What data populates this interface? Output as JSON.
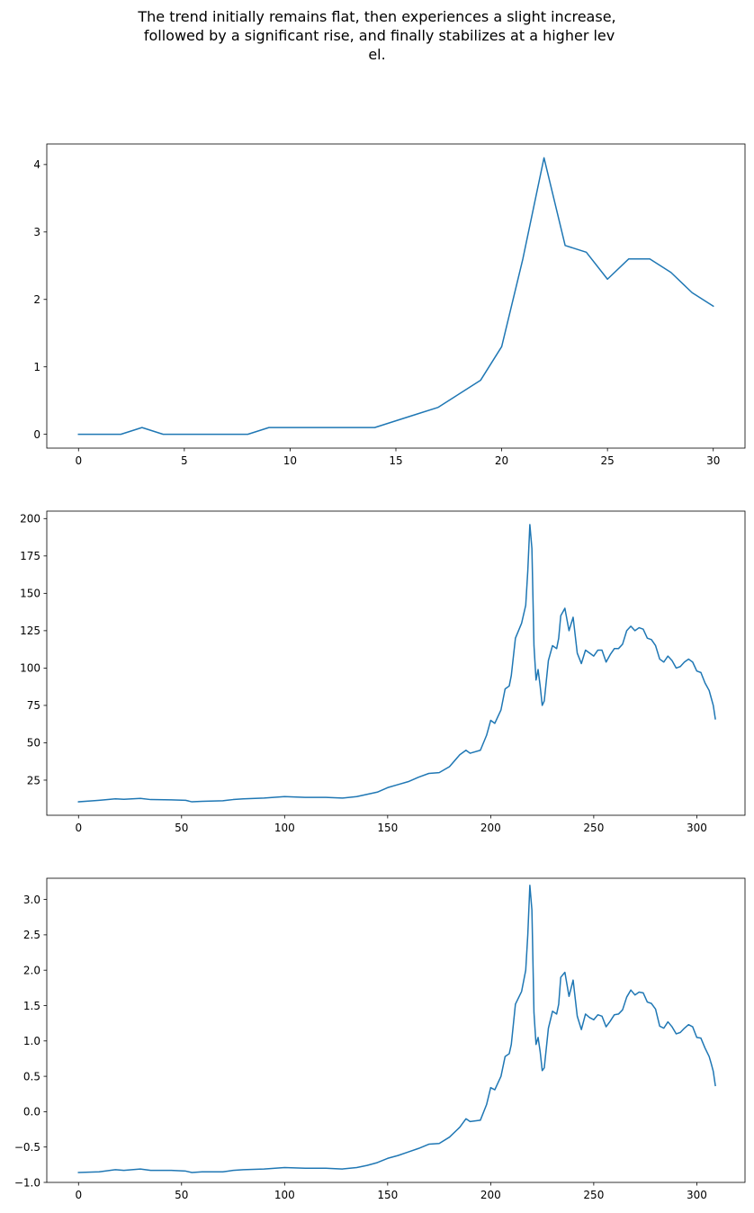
{
  "suptitle": {
    "lines": [
      "The trend initially remains flat, then experiences a slight increase,",
      " followed by a significant rise, and finally stabilizes at a higher lev",
      "el."
    ]
  },
  "colors": {
    "line": "#1f77b4",
    "axes": "#000000",
    "background": "#ffffff"
  },
  "chart_data": [
    {
      "type": "line",
      "title": "",
      "xlabel": "",
      "ylabel": "",
      "grid": false,
      "xlim": [
        -1.5,
        31.5
      ],
      "ylim": [
        -0.205,
        4.305
      ],
      "xticks": [
        0,
        5,
        10,
        15,
        20,
        25,
        30
      ],
      "xtick_labels": [
        "0",
        "5",
        "10",
        "15",
        "20",
        "25",
        "30"
      ],
      "yticks": [
        0,
        1,
        2,
        3,
        4
      ],
      "ytick_labels": [
        "0",
        "1",
        "2",
        "3",
        "4"
      ],
      "series": [
        {
          "x": [
            0,
            1,
            2,
            3,
            4,
            5,
            6,
            7,
            8,
            9,
            10,
            11,
            12,
            13,
            14,
            15,
            16,
            17,
            18,
            19,
            20,
            21,
            22,
            23,
            24,
            25,
            26,
            27,
            28,
            29,
            30
          ],
          "y": [
            0,
            0,
            0,
            0.1,
            0,
            0,
            0,
            0,
            0,
            0.1,
            0.1,
            0.1,
            0.1,
            0.1,
            0.1,
            0.2,
            0.3,
            0.4,
            0.6,
            0.8,
            1.3,
            2.6,
            4.1,
            2.8,
            2.7,
            2.3,
            2.6,
            2.6,
            2.4,
            2.1,
            1.9
          ]
        }
      ]
    },
    {
      "type": "line",
      "title": "",
      "xlabel": "",
      "ylabel": "",
      "grid": false,
      "xlim": [
        -15.4,
        323.4
      ],
      "ylim": [
        1.5,
        205.0
      ],
      "xticks": [
        0,
        50,
        100,
        150,
        200,
        250,
        300
      ],
      "xtick_labels": [
        "0",
        "50",
        "100",
        "150",
        "200",
        "250",
        "300"
      ],
      "yticks": [
        25,
        50,
        75,
        100,
        125,
        150,
        175,
        200
      ],
      "ytick_labels": [
        "25",
        "50",
        "75",
        "100",
        "125",
        "150",
        "175",
        "200"
      ],
      "series": [
        {
          "x": [
            0,
            10,
            18,
            22,
            30,
            35,
            45,
            52,
            55,
            60,
            70,
            75,
            80,
            90,
            100,
            110,
            120,
            128,
            135,
            140,
            145,
            150,
            155,
            160,
            165,
            170,
            175,
            180,
            185,
            188,
            190,
            195,
            198,
            200,
            202,
            205,
            207,
            209,
            210,
            212,
            215,
            217,
            218,
            219,
            220,
            221,
            222,
            223,
            224,
            225,
            226,
            228,
            230,
            232,
            233,
            234,
            236,
            238,
            240,
            242,
            244,
            246,
            248,
            250,
            252,
            254,
            256,
            258,
            260,
            262,
            264,
            266,
            268,
            270,
            272,
            274,
            276,
            278,
            280,
            282,
            284,
            286,
            288,
            290,
            292,
            294,
            296,
            298,
            300,
            302,
            304,
            306,
            307,
            308,
            309
          ],
          "y": [
            10.5,
            11.5,
            12.5,
            12.2,
            12.8,
            12.0,
            11.8,
            11.5,
            10.5,
            10.8,
            11.2,
            12.0,
            12.5,
            13.0,
            14.0,
            13.5,
            13.5,
            13.0,
            14.0,
            15.5,
            17.0,
            20.0,
            22.0,
            24.0,
            27.0,
            29.5,
            30.0,
            34.0,
            42.0,
            45.0,
            43.0,
            45.0,
            55.0,
            65.0,
            63.0,
            72.0,
            86.0,
            88.0,
            95.0,
            120.0,
            130.0,
            142.0,
            165.0,
            196.0,
            180.0,
            115.0,
            92.0,
            99.0,
            88.0,
            75.0,
            78.0,
            105.0,
            115.0,
            113.0,
            120.0,
            135.0,
            140.0,
            125.0,
            134.0,
            110.0,
            103.0,
            112.0,
            110.0,
            108.0,
            112.0,
            112.0,
            104.0,
            109.0,
            113.0,
            113.0,
            116.0,
            125.0,
            128.0,
            125.0,
            127.0,
            126.0,
            120.0,
            119.0,
            115.0,
            106.0,
            104.0,
            108.0,
            105.0,
            100.0,
            101.0,
            104.0,
            106.0,
            104.0,
            98.0,
            97.0,
            90.0,
            85.0,
            80.0,
            75.0,
            66.0
          ]
        }
      ]
    },
    {
      "type": "line",
      "title": "",
      "xlabel": "",
      "ylabel": "",
      "grid": false,
      "xlim": [
        -15.4,
        323.4
      ],
      "ylim": [
        -1.0,
        3.3
      ],
      "xticks": [
        0,
        50,
        100,
        150,
        200,
        250,
        300
      ],
      "xtick_labels": [
        "0",
        "50",
        "100",
        "150",
        "200",
        "250",
        "300"
      ],
      "yticks": [
        -1.0,
        -0.5,
        0.0,
        0.5,
        1.0,
        1.5,
        2.0,
        2.5,
        3.0
      ],
      "ytick_labels": [
        "−1.0",
        "−0.5",
        "0.0",
        "0.5",
        "1.0",
        "1.5",
        "2.0",
        "2.5",
        "3.0"
      ],
      "series": [
        {
          "x": [
            0,
            10,
            18,
            22,
            30,
            35,
            45,
            52,
            55,
            60,
            70,
            75,
            80,
            90,
            100,
            110,
            120,
            128,
            135,
            140,
            145,
            150,
            155,
            160,
            165,
            170,
            175,
            180,
            185,
            188,
            190,
            195,
            198,
            200,
            202,
            205,
            207,
            209,
            210,
            212,
            215,
            217,
            218,
            219,
            220,
            221,
            222,
            223,
            224,
            225,
            226,
            228,
            230,
            232,
            233,
            234,
            236,
            238,
            240,
            242,
            244,
            246,
            248,
            250,
            252,
            254,
            256,
            258,
            260,
            262,
            264,
            266,
            268,
            270,
            272,
            274,
            276,
            278,
            280,
            282,
            284,
            286,
            288,
            290,
            292,
            294,
            296,
            298,
            300,
            302,
            304,
            306,
            307,
            308,
            309
          ],
          "y": [
            -0.86,
            -0.85,
            -0.82,
            -0.83,
            -0.81,
            -0.83,
            -0.83,
            -0.84,
            -0.86,
            -0.85,
            -0.85,
            -0.83,
            -0.82,
            -0.81,
            -0.79,
            -0.8,
            -0.8,
            -0.81,
            -0.79,
            -0.76,
            -0.72,
            -0.66,
            -0.62,
            -0.57,
            -0.52,
            -0.46,
            -0.45,
            -0.36,
            -0.22,
            -0.1,
            -0.14,
            -0.12,
            0.1,
            0.34,
            0.31,
            0.5,
            0.78,
            0.82,
            0.95,
            1.52,
            1.7,
            2.0,
            2.5,
            3.2,
            2.85,
            1.4,
            0.95,
            1.05,
            0.85,
            0.58,
            0.62,
            1.18,
            1.42,
            1.38,
            1.52,
            1.9,
            1.97,
            1.63,
            1.86,
            1.35,
            1.16,
            1.38,
            1.33,
            1.3,
            1.37,
            1.35,
            1.2,
            1.28,
            1.37,
            1.38,
            1.44,
            1.62,
            1.72,
            1.65,
            1.69,
            1.68,
            1.55,
            1.53,
            1.45,
            1.21,
            1.18,
            1.27,
            1.2,
            1.1,
            1.12,
            1.18,
            1.23,
            1.2,
            1.05,
            1.04,
            0.9,
            0.78,
            0.68,
            0.57,
            0.37
          ]
        }
      ]
    }
  ]
}
